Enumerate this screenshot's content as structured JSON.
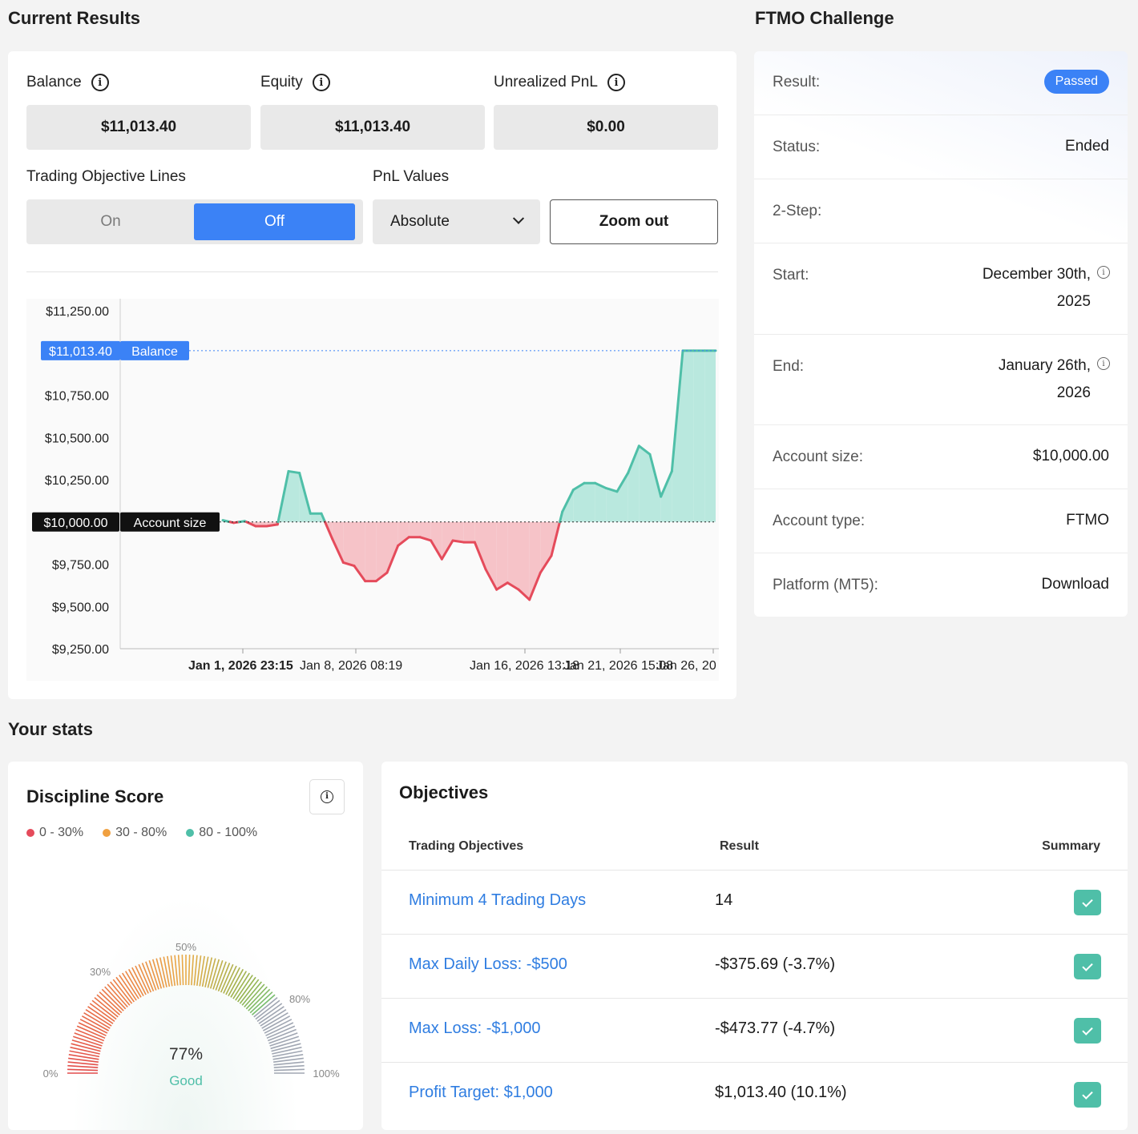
{
  "current_results": {
    "title": "Current Results",
    "balance": {
      "label": "Balance",
      "value": "$11,013.40"
    },
    "equity": {
      "label": "Equity",
      "value": "$11,013.40"
    },
    "unrealized": {
      "label": "Unrealized PnL",
      "value": "$0.00"
    },
    "objective_lines": {
      "label": "Trading Objective Lines",
      "on": "On",
      "off": "Off",
      "selected": "Off"
    },
    "pnl_values": {
      "label": "PnL Values",
      "selected": "Absolute"
    },
    "zoom_out": "Zoom out"
  },
  "chart_data": {
    "type": "area",
    "title": "",
    "y_ticks": [
      "$11,250.00",
      "$10,750.00",
      "$10,500.00",
      "$10,250.00",
      "$9,750.00",
      "$9,500.00",
      "$9,250.00"
    ],
    "ylim": [
      9250,
      11250
    ],
    "x_ticks": [
      "Jan 1, 2026 23:15",
      "Jan 8, 2026 08:19",
      "Jan 16, 2026 13:18",
      "Jan 21, 2026 15:08",
      "Jan 26, 20"
    ],
    "baseline": {
      "value": 10000,
      "label": "$10,000.00",
      "name": "Account size"
    },
    "current": {
      "value": 11013.4,
      "label": "$11,013.40",
      "name": "Balance"
    },
    "colors": {
      "above": "#4fbfa8",
      "below": "#e54b5b",
      "above_fill": "#b9e8de",
      "below_fill": "#f6c3c8",
      "balance": "#3b82f6"
    },
    "series": [
      {
        "name": "Balance",
        "x": [
          0,
          1,
          2,
          3,
          4,
          5,
          6,
          7,
          8,
          9,
          10,
          11,
          12,
          13,
          14,
          15,
          16,
          17,
          18,
          19,
          20,
          21,
          22,
          23,
          24,
          25,
          26,
          27,
          28,
          29,
          30,
          31,
          32,
          33,
          34,
          35,
          36,
          37,
          38,
          39,
          40,
          41,
          42,
          43,
          44,
          45
        ],
        "values": [
          10010,
          9995,
          10005,
          9975,
          9975,
          9985,
          10300,
          10290,
          10050,
          10050,
          9900,
          9760,
          9740,
          9650,
          9650,
          9700,
          9860,
          9910,
          9910,
          9890,
          9780,
          9890,
          9880,
          9880,
          9720,
          9600,
          9640,
          9600,
          9540,
          9700,
          9800,
          10060,
          10190,
          10230,
          10230,
          10200,
          10180,
          10290,
          10450,
          10400,
          10150,
          10300,
          11013.4,
          11013.4,
          11013.4,
          11013.4
        ]
      }
    ]
  },
  "ftmo": {
    "title": "FTMO Challenge",
    "result": {
      "label": "Result:",
      "value": "Passed"
    },
    "status": {
      "label": "Status:",
      "value": "Ended"
    },
    "step": {
      "label": "2-Step:",
      "value": ""
    },
    "start": {
      "label": "Start:",
      "line1": "December 30th,",
      "line2": "2025"
    },
    "end": {
      "label": "End:",
      "line1": "January 26th,",
      "line2": "2026"
    },
    "account_size": {
      "label": "Account size:",
      "value": "$10,000.00"
    },
    "account_type": {
      "label": "Account type:",
      "value": "FTMO"
    },
    "platform": {
      "label": "Platform (MT5):",
      "value": "Download"
    }
  },
  "stats": {
    "title": "Your stats",
    "discipline": {
      "title": "Discipline Score",
      "legend": [
        {
          "label": "0 - 30%",
          "color": "#e54b5b"
        },
        {
          "label": "30 - 80%",
          "color": "#f0a040"
        },
        {
          "label": "80 - 100%",
          "color": "#4fbfa8"
        }
      ],
      "gauge_labels": [
        "0%",
        "30%",
        "50%",
        "80%",
        "100%"
      ],
      "score": "77%",
      "rating": "Good",
      "score_value": 77
    },
    "objectives": {
      "title": "Objectives",
      "headers": [
        "Trading Objectives",
        "Result",
        "Summary"
      ],
      "rows": [
        {
          "name": "Minimum 4 Trading Days",
          "result": "14"
        },
        {
          "name": "Max Daily Loss: -$500",
          "result": "-$375.69 (-3.7%)"
        },
        {
          "name": "Max Loss: -$1,000",
          "result": "-$473.77 (-4.7%)"
        },
        {
          "name": "Profit Target: $1,000",
          "result": "$1,013.40 (10.1%)"
        }
      ]
    }
  }
}
